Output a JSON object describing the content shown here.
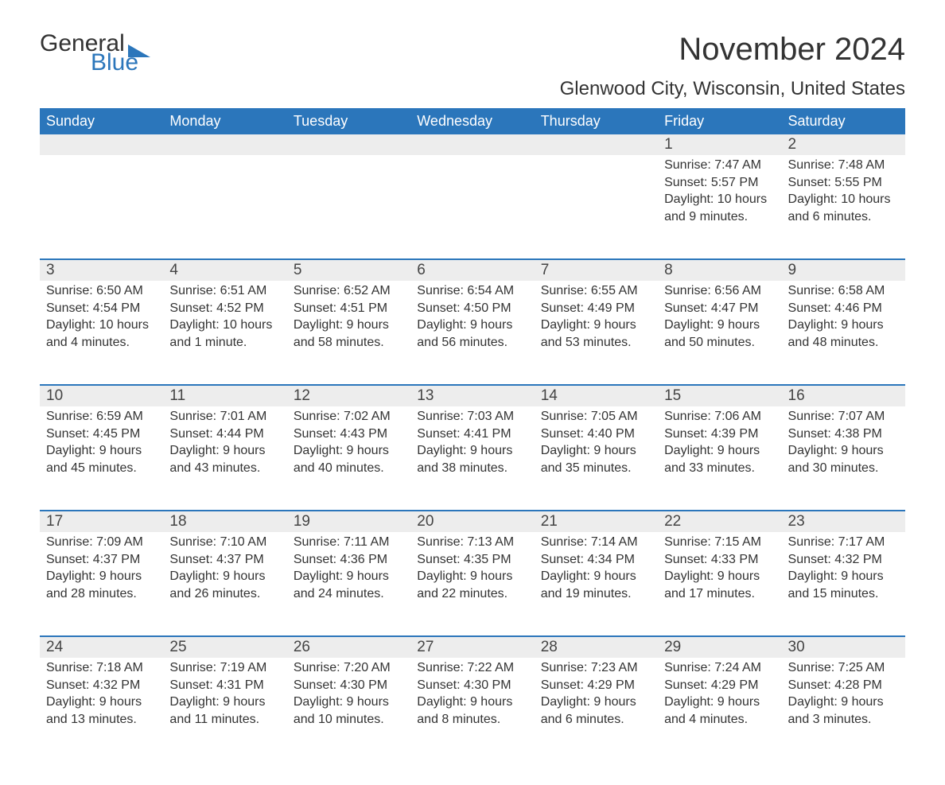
{
  "logo": {
    "text1": "General",
    "text2": "Blue",
    "flag_color": "#2b76bb"
  },
  "title": "November 2024",
  "location": "Glenwood City, Wisconsin, United States",
  "colors": {
    "header_bg": "#2b76bb",
    "header_text": "#ffffff",
    "daynum_bg": "#ededed",
    "week_border": "#2b76bb",
    "body_text": "#333333"
  },
  "day_headers": [
    "Sunday",
    "Monday",
    "Tuesday",
    "Wednesday",
    "Thursday",
    "Friday",
    "Saturday"
  ],
  "weeks": [
    [
      null,
      null,
      null,
      null,
      null,
      {
        "n": "1",
        "sunrise": "7:47 AM",
        "sunset": "5:57 PM",
        "daylight": "10 hours and 9 minutes."
      },
      {
        "n": "2",
        "sunrise": "7:48 AM",
        "sunset": "5:55 PM",
        "daylight": "10 hours and 6 minutes."
      }
    ],
    [
      {
        "n": "3",
        "sunrise": "6:50 AM",
        "sunset": "4:54 PM",
        "daylight": "10 hours and 4 minutes."
      },
      {
        "n": "4",
        "sunrise": "6:51 AM",
        "sunset": "4:52 PM",
        "daylight": "10 hours and 1 minute."
      },
      {
        "n": "5",
        "sunrise": "6:52 AM",
        "sunset": "4:51 PM",
        "daylight": "9 hours and 58 minutes."
      },
      {
        "n": "6",
        "sunrise": "6:54 AM",
        "sunset": "4:50 PM",
        "daylight": "9 hours and 56 minutes."
      },
      {
        "n": "7",
        "sunrise": "6:55 AM",
        "sunset": "4:49 PM",
        "daylight": "9 hours and 53 minutes."
      },
      {
        "n": "8",
        "sunrise": "6:56 AM",
        "sunset": "4:47 PM",
        "daylight": "9 hours and 50 minutes."
      },
      {
        "n": "9",
        "sunrise": "6:58 AM",
        "sunset": "4:46 PM",
        "daylight": "9 hours and 48 minutes."
      }
    ],
    [
      {
        "n": "10",
        "sunrise": "6:59 AM",
        "sunset": "4:45 PM",
        "daylight": "9 hours and 45 minutes."
      },
      {
        "n": "11",
        "sunrise": "7:01 AM",
        "sunset": "4:44 PM",
        "daylight": "9 hours and 43 minutes."
      },
      {
        "n": "12",
        "sunrise": "7:02 AM",
        "sunset": "4:43 PM",
        "daylight": "9 hours and 40 minutes."
      },
      {
        "n": "13",
        "sunrise": "7:03 AM",
        "sunset": "4:41 PM",
        "daylight": "9 hours and 38 minutes."
      },
      {
        "n": "14",
        "sunrise": "7:05 AM",
        "sunset": "4:40 PM",
        "daylight": "9 hours and 35 minutes."
      },
      {
        "n": "15",
        "sunrise": "7:06 AM",
        "sunset": "4:39 PM",
        "daylight": "9 hours and 33 minutes."
      },
      {
        "n": "16",
        "sunrise": "7:07 AM",
        "sunset": "4:38 PM",
        "daylight": "9 hours and 30 minutes."
      }
    ],
    [
      {
        "n": "17",
        "sunrise": "7:09 AM",
        "sunset": "4:37 PM",
        "daylight": "9 hours and 28 minutes."
      },
      {
        "n": "18",
        "sunrise": "7:10 AM",
        "sunset": "4:37 PM",
        "daylight": "9 hours and 26 minutes."
      },
      {
        "n": "19",
        "sunrise": "7:11 AM",
        "sunset": "4:36 PM",
        "daylight": "9 hours and 24 minutes."
      },
      {
        "n": "20",
        "sunrise": "7:13 AM",
        "sunset": "4:35 PM",
        "daylight": "9 hours and 22 minutes."
      },
      {
        "n": "21",
        "sunrise": "7:14 AM",
        "sunset": "4:34 PM",
        "daylight": "9 hours and 19 minutes."
      },
      {
        "n": "22",
        "sunrise": "7:15 AM",
        "sunset": "4:33 PM",
        "daylight": "9 hours and 17 minutes."
      },
      {
        "n": "23",
        "sunrise": "7:17 AM",
        "sunset": "4:32 PM",
        "daylight": "9 hours and 15 minutes."
      }
    ],
    [
      {
        "n": "24",
        "sunrise": "7:18 AM",
        "sunset": "4:32 PM",
        "daylight": "9 hours and 13 minutes."
      },
      {
        "n": "25",
        "sunrise": "7:19 AM",
        "sunset": "4:31 PM",
        "daylight": "9 hours and 11 minutes."
      },
      {
        "n": "26",
        "sunrise": "7:20 AM",
        "sunset": "4:30 PM",
        "daylight": "9 hours and 10 minutes."
      },
      {
        "n": "27",
        "sunrise": "7:22 AM",
        "sunset": "4:30 PM",
        "daylight": "9 hours and 8 minutes."
      },
      {
        "n": "28",
        "sunrise": "7:23 AM",
        "sunset": "4:29 PM",
        "daylight": "9 hours and 6 minutes."
      },
      {
        "n": "29",
        "sunrise": "7:24 AM",
        "sunset": "4:29 PM",
        "daylight": "9 hours and 4 minutes."
      },
      {
        "n": "30",
        "sunrise": "7:25 AM",
        "sunset": "4:28 PM",
        "daylight": "9 hours and 3 minutes."
      }
    ]
  ],
  "labels": {
    "sunrise": "Sunrise: ",
    "sunset": "Sunset: ",
    "daylight": "Daylight: "
  }
}
